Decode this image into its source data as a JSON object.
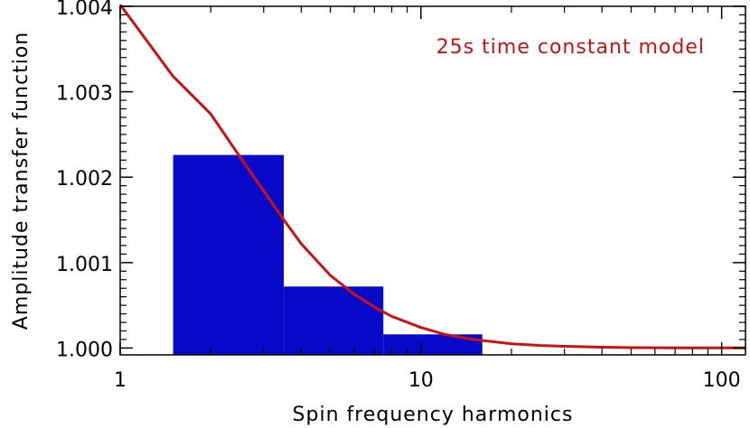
{
  "chart_data": {
    "type": "bar",
    "xscale": "log",
    "xlim": [
      1,
      120
    ],
    "ylim": [
      0.99992,
      1.004
    ],
    "xlabel": "Spin frequency harmonics",
    "ylabel": "Amplitude transfer function",
    "x_ticks": [
      {
        "value": 1,
        "label": "1"
      },
      {
        "value": 10,
        "label": "10"
      },
      {
        "value": 100,
        "label": "100"
      }
    ],
    "y_ticks": [
      {
        "value": 1.0,
        "label": "1.000"
      },
      {
        "value": 1.001,
        "label": "1.001"
      },
      {
        "value": 1.002,
        "label": "1.002"
      },
      {
        "value": 1.003,
        "label": "1.003"
      },
      {
        "value": 1.004,
        "label": "1.004"
      }
    ],
    "bars": [
      {
        "x0": 1.5,
        "x1": 3.5,
        "value": 1.00226
      },
      {
        "x0": 3.5,
        "x1": 7.5,
        "value": 1.00072
      },
      {
        "x0": 7.5,
        "x1": 16,
        "value": 1.00016
      }
    ],
    "bar_color": "#0808c8",
    "series": [
      {
        "name": "25s time constant model",
        "color": "#cc1111",
        "x": [
          1,
          1.5,
          2,
          2.5,
          3,
          3.5,
          4,
          5,
          6,
          7,
          8,
          10,
          12,
          15,
          20,
          25,
          30,
          40,
          50,
          60,
          80,
          100,
          120
        ],
        "y": [
          1.00402,
          1.00318,
          1.00274,
          1.00224,
          1.00184,
          1.0015,
          1.00122,
          1.00085,
          1.00063,
          1.00048,
          1.00037,
          1.00024,
          1.00016,
          1.0001,
          1.00005,
          1.00003,
          1.00002,
          1.00001,
          1.000005,
          1.000003,
          1.000002,
          1.000001,
          1.000001
        ]
      }
    ],
    "annotation": "25s time constant model",
    "grid": false
  }
}
